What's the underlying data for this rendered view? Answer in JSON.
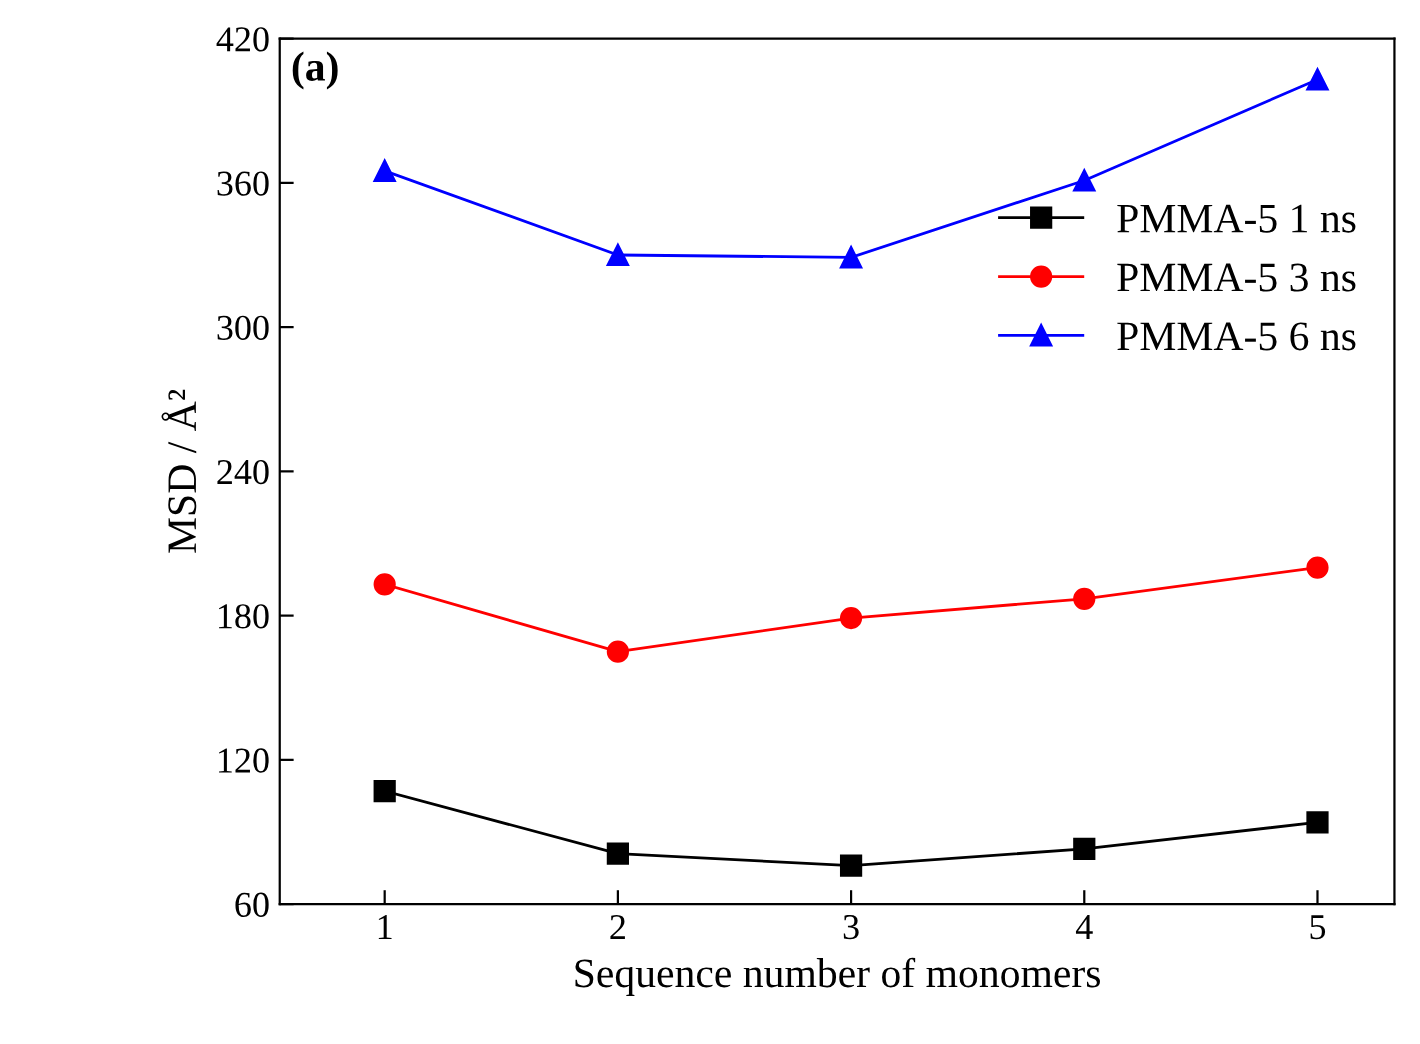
{
  "chart_data": {
    "type": "line",
    "xlabel": "Sequence number of monomers",
    "ylabel": "MSD / Å²",
    "annotations": [
      "(a)"
    ],
    "x": [
      1,
      2,
      3,
      4,
      5
    ],
    "xlim": [
      0.55,
      5.33
    ],
    "xticks": [
      1,
      2,
      3,
      4,
      5
    ],
    "ylim": [
      60,
      420
    ],
    "yticks": [
      60,
      120,
      180,
      240,
      300,
      360,
      420
    ],
    "series": [
      {
        "name": "PMMA-5 1 ns",
        "color": "#000000",
        "marker": "square",
        "values": [
          107,
          81,
          76,
          83,
          94
        ]
      },
      {
        "name": "PMMA-5 3 ns",
        "color": "#ff0000",
        "marker": "circle",
        "values": [
          193,
          165,
          179,
          187,
          200
        ]
      },
      {
        "name": "PMMA-5 6 ns",
        "color": "#0000ff",
        "marker": "triangle",
        "values": [
          365,
          330,
          329,
          361,
          403
        ]
      }
    ],
    "legend": "right",
    "grid": false,
    "line_style": "solid"
  }
}
